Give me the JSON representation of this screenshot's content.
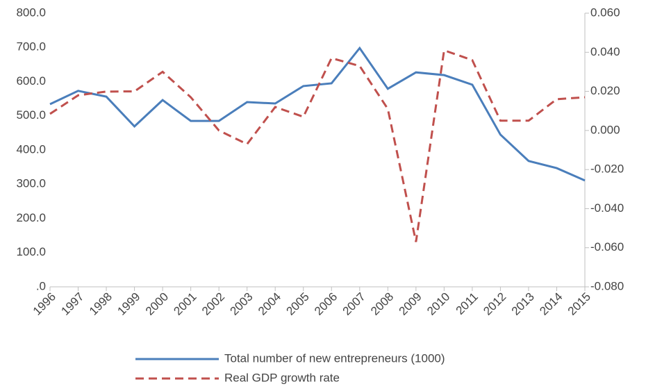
{
  "chart_data": {
    "type": "line",
    "categories": [
      "1996",
      "1997",
      "1998",
      "1999",
      "2000",
      "2001",
      "2002",
      "2003",
      "2004",
      "2005",
      "2006",
      "2007",
      "2008",
      "2009",
      "2010",
      "2011",
      "2012",
      "2013",
      "2014",
      "2015"
    ],
    "series": [
      {
        "name": "Total number of new entrepreneurs (1000)",
        "color": "#4a7ebb",
        "dash": false,
        "values": [
          534,
          573,
          556,
          469,
          546,
          485,
          485,
          540,
          536,
          587,
          595,
          698,
          579,
          627,
          619,
          591,
          445,
          368,
          347,
          311
        ]
      },
      {
        "name": "Real GDP growth rate",
        "color": "#c0504d",
        "dash": true,
        "axis": "y2",
        "values": [
          0.0085,
          0.018,
          0.0199,
          0.02,
          0.03,
          0.017,
          0.0,
          -0.007,
          0.012,
          0.007,
          0.037,
          0.033,
          0.011,
          -0.057,
          0.041,
          0.036,
          0.005,
          0.005,
          0.016,
          0.017
        ]
      }
    ],
    "ylim": [
      0,
      800
    ],
    "yticks": [
      {
        "value": 0,
        "label": ".0"
      },
      {
        "value": 100,
        "label": "100.0"
      },
      {
        "value": 200,
        "label": "200.0"
      },
      {
        "value": 300,
        "label": "300.0"
      },
      {
        "value": 400,
        "label": "400.0"
      },
      {
        "value": 500,
        "label": "500.0"
      },
      {
        "value": 600,
        "label": "600.0"
      },
      {
        "value": 700,
        "label": "700.0"
      },
      {
        "value": 800,
        "label": "800.0"
      }
    ],
    "y2lim": [
      -0.08,
      0.06
    ],
    "y2ticks": [
      {
        "value": -0.08,
        "label": "-0.080"
      },
      {
        "value": -0.06,
        "label": "-0.060"
      },
      {
        "value": -0.04,
        "label": "-0.040"
      },
      {
        "value": -0.02,
        "label": "-0.020"
      },
      {
        "value": 0,
        "label": "0.000"
      },
      {
        "value": 0.02,
        "label": "0.020"
      },
      {
        "value": 0.04,
        "label": "0.040"
      },
      {
        "value": 0.06,
        "label": "0.060"
      }
    ],
    "grid": false,
    "legend": "bottom"
  }
}
